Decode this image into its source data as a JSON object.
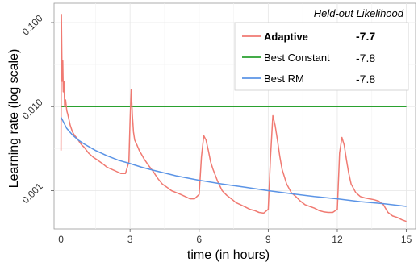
{
  "chart_data": {
    "type": "line",
    "xlabel": "time (in hours)",
    "ylabel": "Learning rate (log scale)",
    "xlim": [
      -0.3,
      15.4
    ],
    "ylim": [
      0.00035,
      0.17
    ],
    "y_scale": "log",
    "x_ticks": [
      0,
      3,
      6,
      9,
      12,
      15
    ],
    "x_tick_labels": [
      "0",
      "3",
      "6",
      "9",
      "12",
      "15"
    ],
    "y_ticks": [
      0.001,
      0.01,
      0.1
    ],
    "y_tick_labels": [
      "0.001",
      "0.010",
      "0.100"
    ],
    "grid": true,
    "legend": {
      "position": "top-right",
      "title": "Held-out Likelihood",
      "entries": [
        {
          "label": "Adaptive",
          "value": "-7.7",
          "bold": true,
          "color": "#f07a72"
        },
        {
          "label": "Best Constant",
          "value": "-7.8",
          "bold": false,
          "color": "#2aa12f"
        },
        {
          "label": "Best RM",
          "value": "-7.8",
          "bold": false,
          "color": "#5b94e6"
        }
      ]
    },
    "series": [
      {
        "name": "Adaptive",
        "color": "#f07a72",
        "x": [
          0,
          0.02,
          0.05,
          0.08,
          0.1,
          0.13,
          0.16,
          0.2,
          0.25,
          0.3,
          0.4,
          0.5,
          0.6,
          0.7,
          0.8,
          0.9,
          1.0,
          1.2,
          1.4,
          1.6,
          1.8,
          2.0,
          2.2,
          2.4,
          2.6,
          2.8,
          2.95,
          3.0,
          3.05,
          3.1,
          3.15,
          3.2,
          3.3,
          3.4,
          3.5,
          3.6,
          3.8,
          4.0,
          4.2,
          4.4,
          4.6,
          4.8,
          5.0,
          5.2,
          5.4,
          5.6,
          5.8,
          6.0,
          6.1,
          6.2,
          6.3,
          6.4,
          6.5,
          6.6,
          6.8,
          7.0,
          7.2,
          7.4,
          7.6,
          7.8,
          8.0,
          8.2,
          8.4,
          8.6,
          8.8,
          9.0,
          9.1,
          9.2,
          9.3,
          9.4,
          9.5,
          9.6,
          9.8,
          10.0,
          10.2,
          10.4,
          10.6,
          10.8,
          11.0,
          11.2,
          11.4,
          11.6,
          11.8,
          12.0,
          12.1,
          12.2,
          12.3,
          12.4,
          12.5,
          12.6,
          12.8,
          13.0,
          13.2,
          13.4,
          13.6,
          13.8,
          14.0,
          14.2,
          14.4,
          14.6,
          14.8,
          15.0
        ],
        "y": [
          0.003,
          0.125,
          0.02,
          0.035,
          0.015,
          0.02,
          0.01,
          0.012,
          0.009,
          0.008,
          0.006,
          0.005,
          0.0045,
          0.0042,
          0.0038,
          0.0035,
          0.0033,
          0.0028,
          0.0025,
          0.0023,
          0.0021,
          0.0019,
          0.0018,
          0.0017,
          0.0016,
          0.0016,
          0.0022,
          0.007,
          0.016,
          0.008,
          0.005,
          0.004,
          0.0035,
          0.003,
          0.0027,
          0.0024,
          0.002,
          0.0017,
          0.0014,
          0.0012,
          0.0011,
          0.001,
          0.00095,
          0.0009,
          0.00085,
          0.0008,
          0.0008,
          0.0009,
          0.0025,
          0.0045,
          0.004,
          0.003,
          0.0022,
          0.0018,
          0.0013,
          0.001,
          0.00088,
          0.0008,
          0.00072,
          0.00068,
          0.00064,
          0.0006,
          0.00058,
          0.00055,
          0.00054,
          0.0006,
          0.0025,
          0.0078,
          0.006,
          0.004,
          0.0026,
          0.0018,
          0.0012,
          0.00095,
          0.00085,
          0.00075,
          0.00068,
          0.00065,
          0.00062,
          0.00058,
          0.00056,
          0.00055,
          0.00055,
          0.0006,
          0.0028,
          0.0043,
          0.0035,
          0.0023,
          0.0016,
          0.0012,
          0.00095,
          0.00085,
          0.00082,
          0.0008,
          0.00078,
          0.00075,
          0.00068,
          0.00055,
          0.0005,
          0.00048,
          0.00045,
          0.00043
        ]
      },
      {
        "name": "Best Constant",
        "color": "#2aa12f",
        "x": [
          0,
          15
        ],
        "y": [
          0.01,
          0.01
        ]
      },
      {
        "name": "Best RM",
        "color": "#5b94e6",
        "x": [
          0,
          0.25,
          0.5,
          0.75,
          1,
          1.5,
          2,
          2.5,
          3,
          3.5,
          4,
          5,
          6,
          7,
          8,
          9,
          10,
          11,
          12,
          13,
          14,
          15
        ],
        "y": [
          0.0075,
          0.0055,
          0.0046,
          0.004,
          0.0036,
          0.003,
          0.0026,
          0.0023,
          0.0021,
          0.0019,
          0.00175,
          0.0015,
          0.00133,
          0.0012,
          0.0011,
          0.001,
          0.00092,
          0.00085,
          0.0008,
          0.00074,
          0.0007,
          0.00065
        ]
      }
    ]
  }
}
